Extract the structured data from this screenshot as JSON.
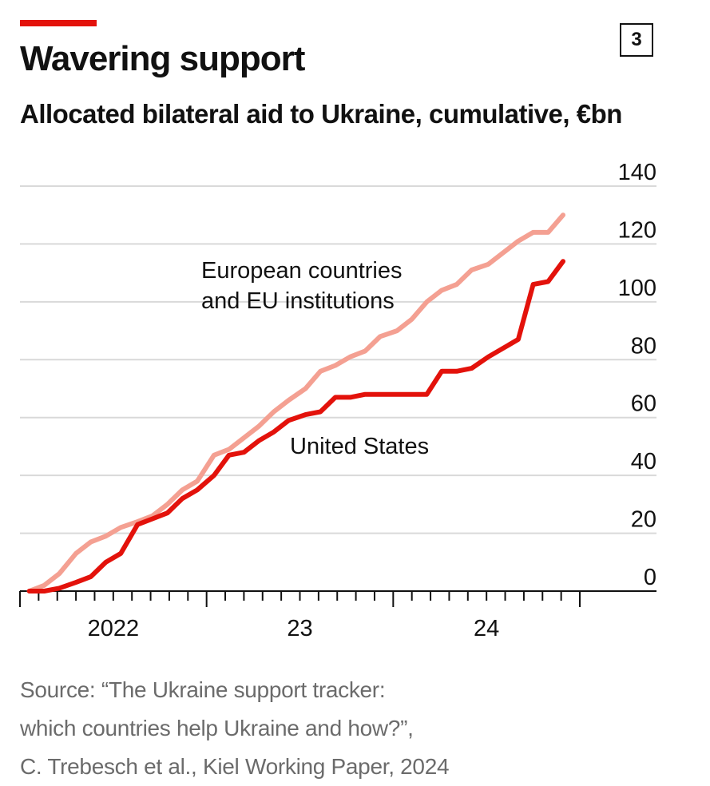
{
  "header": {
    "title": "Wavering support",
    "subtitle": "Allocated bilateral aid to Ukraine, cumulative, €bn",
    "chart_number": "3"
  },
  "source": {
    "lines": [
      "Source: “The Ukraine support tracker:",
      "which countries help Ukraine and how?”,",
      "C. Trebesch et al., Kiel Working Paper, 2024"
    ]
  },
  "colors": {
    "accent": "#e3120b",
    "us_line": "#e3120b",
    "europe_line": "#f4a092",
    "grid": "#d9d9d9",
    "axis": "#111111"
  },
  "chart_data": {
    "type": "line",
    "title": "Allocated bilateral aid to Ukraine, cumulative, €bn",
    "xlabel": "",
    "ylabel": "€bn",
    "ylim": [
      0,
      140
    ],
    "yticks": [
      0,
      20,
      40,
      60,
      80,
      100,
      120,
      140
    ],
    "xlim": [
      0,
      30
    ],
    "x_tick_labels": [
      {
        "label": "2022",
        "x": 5
      },
      {
        "label": "23",
        "x": 15
      },
      {
        "label": "24",
        "x": 25
      }
    ],
    "major_ticks": [
      0,
      10,
      20,
      30
    ],
    "minor_ticks_per_unit": 1,
    "grid": true,
    "series": [
      {
        "name": "European countries and EU institutions",
        "label_lines": [
          "European countries",
          "and EU institutions"
        ],
        "x": [
          0.5,
          1.3,
          2.1,
          3.0,
          3.8,
          4.6,
          5.4,
          6.3,
          7.1,
          7.9,
          8.7,
          9.5,
          10.4,
          11.2,
          12.0,
          12.8,
          13.6,
          14.4,
          15.3,
          16.1,
          16.9,
          17.7,
          18.5,
          19.3,
          20.2,
          21.0,
          21.8,
          22.6,
          23.4,
          24.2,
          25.1,
          25.9,
          26.7,
          27.5,
          28.3,
          29.1
        ],
        "values": [
          0,
          2,
          6,
          13,
          17,
          19,
          22,
          24,
          26,
          30,
          35,
          38,
          47,
          49,
          53,
          57,
          62,
          66,
          70,
          76,
          78,
          81,
          83,
          88,
          90,
          94,
          100,
          104,
          106,
          111,
          113,
          117,
          121,
          124,
          124,
          130
        ]
      },
      {
        "name": "United States",
        "label_lines": [
          "United States"
        ],
        "x": [
          0.5,
          1.3,
          2.1,
          3.0,
          3.8,
          4.6,
          5.4,
          6.3,
          7.1,
          7.9,
          8.7,
          9.5,
          10.4,
          11.2,
          12.0,
          12.8,
          13.6,
          14.4,
          15.3,
          16.1,
          16.9,
          17.7,
          18.5,
          19.3,
          20.2,
          21.0,
          21.8,
          22.6,
          23.4,
          24.2,
          25.1,
          25.9,
          26.7,
          27.5,
          28.3,
          29.1
        ],
        "values": [
          0,
          0,
          1,
          3,
          5,
          10,
          13,
          23,
          25,
          27,
          32,
          35,
          40,
          47,
          48,
          52,
          55,
          59,
          61,
          62,
          67,
          67,
          68,
          68,
          68,
          68,
          68,
          76,
          76,
          77,
          81,
          84,
          87,
          106,
          107,
          114
        ]
      }
    ]
  }
}
